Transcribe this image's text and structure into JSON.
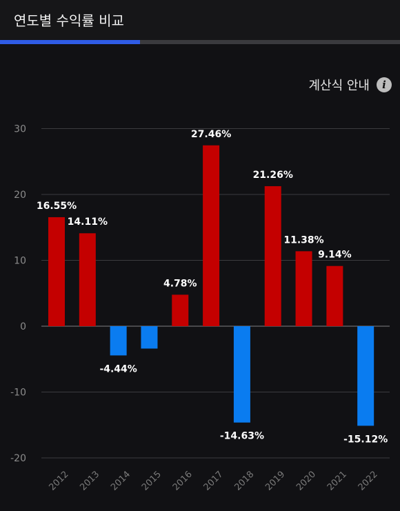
{
  "header": {
    "title": "연도별 수익률 비교"
  },
  "tab_progress": 0.35,
  "info": {
    "label": "계산식 안내",
    "icon": "info-icon"
  },
  "colors": {
    "positive": "#c40000",
    "negative": "#0a7cf0",
    "accent": "#2f5ce6"
  },
  "chart_data": {
    "type": "bar",
    "categories": [
      "2012",
      "2013",
      "2014",
      "2015",
      "2016",
      "2017",
      "2018",
      "2019",
      "2020",
      "2021",
      "2022"
    ],
    "values": [
      16.55,
      14.11,
      -4.44,
      -3.4,
      4.78,
      27.46,
      -14.63,
      21.26,
      11.38,
      9.14,
      -15.12
    ],
    "data_labels": [
      "16.55%",
      "14.11%",
      "-4.44%",
      "",
      "4.78%",
      "27.46%",
      "-14.63%",
      "21.26%",
      "11.38%",
      "9.14%",
      "-15.12%"
    ],
    "y_ticks": [
      30,
      20,
      10,
      0,
      -10,
      -20
    ],
    "ylim": [
      -20,
      30
    ],
    "grid": true
  }
}
